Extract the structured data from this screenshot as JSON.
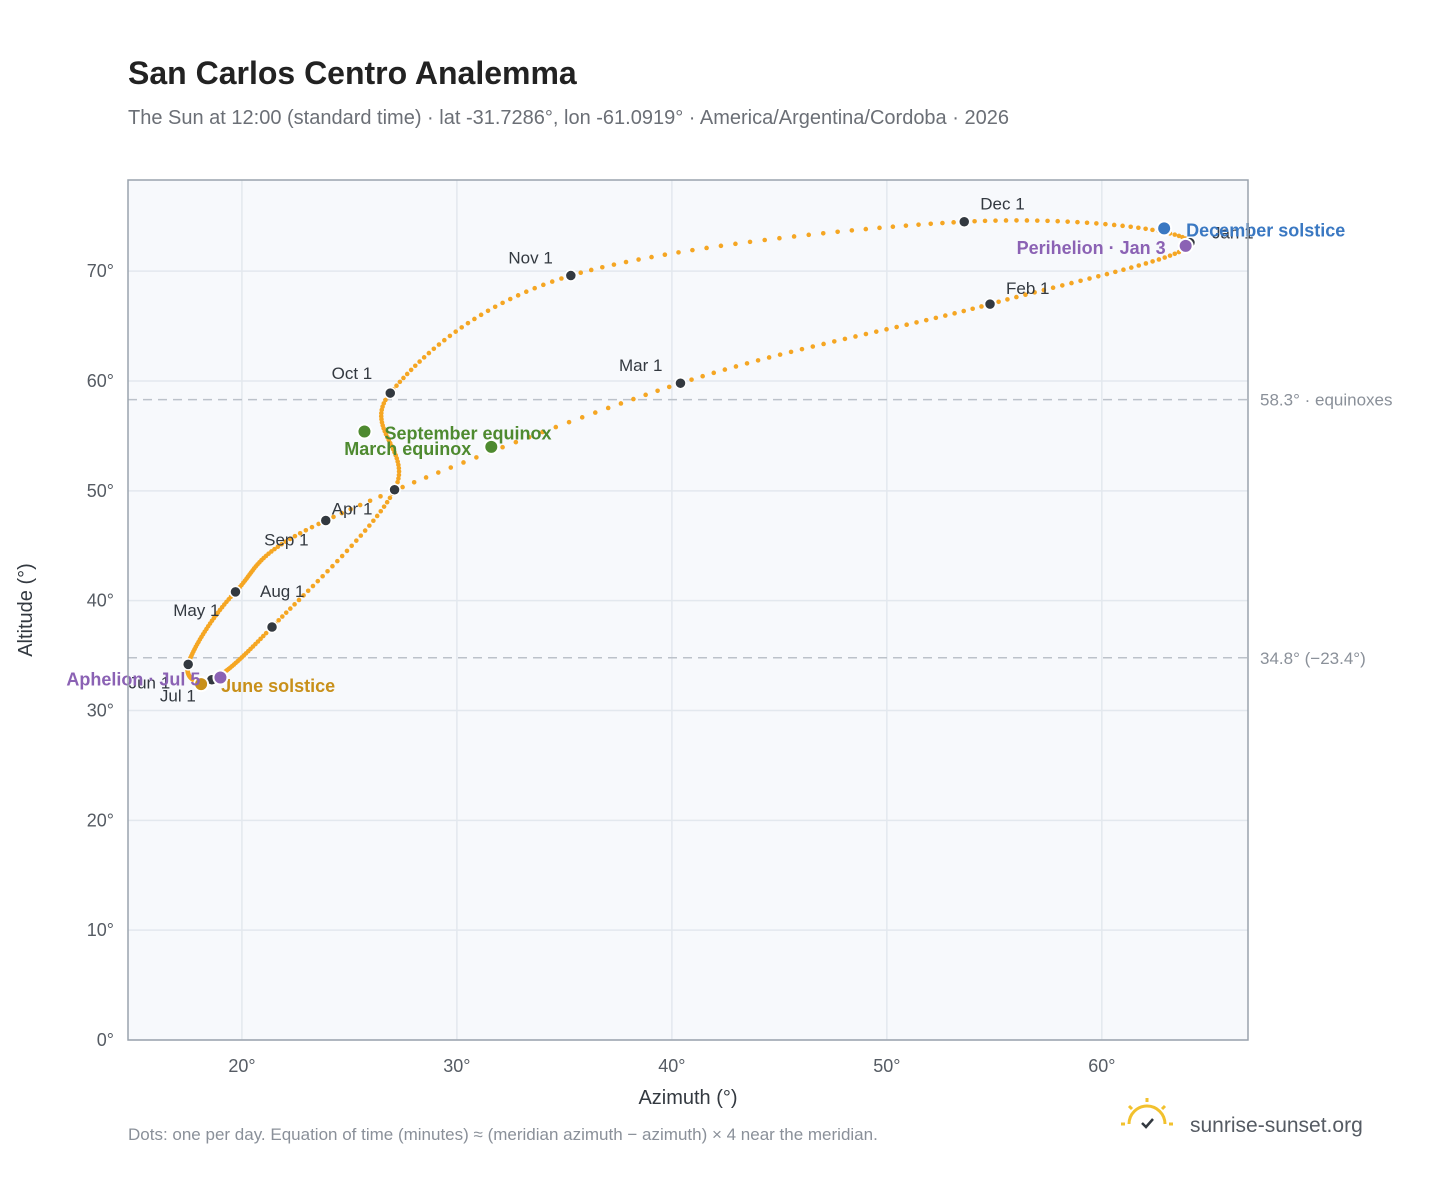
{
  "chart_data": {
    "type": "scatter",
    "title": "San Carlos Centro Analemma",
    "subtitle": "The Sun at 12:00 (standard time) · lat -31.7286°, lon -61.0919° · America/Argentina/Cordoba · 2026",
    "xlabel": "Azimuth (°)",
    "ylabel": "Altitude (°)",
    "xlim": [
      14.7,
      66.8
    ],
    "ylim": [
      0,
      78.3
    ],
    "x_ticks": [
      20,
      30,
      40,
      50,
      60
    ],
    "y_ticks": [
      0,
      10,
      20,
      30,
      40,
      50,
      60,
      70
    ],
    "x_tick_labels": [
      "20°",
      "30°",
      "40°",
      "50°",
      "60°"
    ],
    "y_tick_labels": [
      "0°",
      "10°",
      "20°",
      "30°",
      "40°",
      "50°",
      "60°",
      "70°"
    ],
    "grid": true,
    "series_color": "#f5a623",
    "month_points": [
      {
        "label": "Jan 1",
        "x": 64.1,
        "y": 72.6
      },
      {
        "label": "Feb 1",
        "x": 54.8,
        "y": 67.0
      },
      {
        "label": "Mar 1",
        "x": 40.4,
        "y": 59.8
      },
      {
        "label": "Apr 1",
        "x": 23.9,
        "y": 47.3
      },
      {
        "label": "May 1",
        "x": 19.7,
        "y": 40.8
      },
      {
        "label": "Jun 1",
        "x": 17.5,
        "y": 34.2
      },
      {
        "label": "Jul 1",
        "x": 18.6,
        "y": 32.8
      },
      {
        "label": "Aug 1",
        "x": 21.4,
        "y": 37.6
      },
      {
        "label": "Sep 1",
        "x": 27.1,
        "y": 50.1
      },
      {
        "label": "Oct 1",
        "x": 26.9,
        "y": 58.9
      },
      {
        "label": "Nov 1",
        "x": 35.3,
        "y": 69.6
      },
      {
        "label": "Dec 1",
        "x": 53.6,
        "y": 74.5
      }
    ],
    "events": [
      {
        "label": "December solstice",
        "x": 62.9,
        "y": 73.9,
        "color": "#3a78c2"
      },
      {
        "label": "Perihelion · Jan 3",
        "x": 63.9,
        "y": 72.3,
        "color": "#8b62b4"
      },
      {
        "label": "September equinox",
        "x": 25.7,
        "y": 55.4,
        "color": "#4e8a30"
      },
      {
        "label": "March equinox",
        "x": 31.6,
        "y": 54.0,
        "color": "#4e8a30"
      },
      {
        "label": "June solstice",
        "x": 18.1,
        "y": 32.4,
        "color": "#c8901a"
      },
      {
        "label": "Aphelion · Jul 5",
        "x": 19.0,
        "y": 33.0,
        "color": "#8b62b4"
      }
    ],
    "reference_lines": [
      {
        "y": 58.3,
        "label": "58.3° · equinoxes"
      },
      {
        "y": 34.8,
        "label": "34.8° (−23.4°)"
      }
    ]
  },
  "footer": {
    "note": "Dots: one per day. Equation of time (minutes) ≈ (meridian azimuth − azimuth) × 4 near the meridian.",
    "brand": "sunrise-sunset.org"
  }
}
